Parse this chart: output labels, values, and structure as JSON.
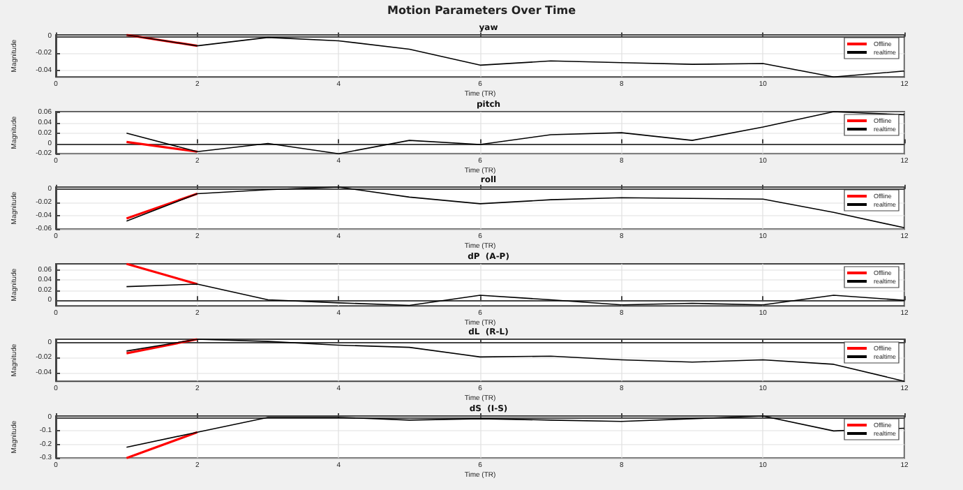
{
  "chart_data": [
    {
      "type": "line",
      "title": "yaw",
      "annotations": [
        "Motion Parameters Over Time"
      ],
      "xlabel": "Time (TR)",
      "ylabel": "Magnitude",
      "x": [
        1,
        2,
        3,
        4,
        5,
        6,
        7,
        8,
        9,
        10,
        11,
        12
      ],
      "xlim": [
        0,
        12
      ],
      "xticks": [
        0,
        2,
        4,
        6,
        8,
        10,
        12
      ],
      "ylim": [
        -0.048,
        0.002
      ],
      "yticks": [
        -0.04,
        -0.02,
        0
      ],
      "grid": true,
      "legend": "top right",
      "series": [
        {
          "name": "Offline",
          "color": "#ff0000",
          "values": [
            0.002,
            -0.011,
            null,
            null,
            null,
            null,
            null,
            null,
            null,
            null,
            null,
            null
          ]
        },
        {
          "name": "realtime",
          "color": "#000000",
          "values": [
            0.002,
            -0.011,
            -0.001,
            -0.005,
            -0.015,
            -0.034,
            -0.029,
            -0.031,
            -0.033,
            -0.032,
            -0.048,
            -0.041
          ]
        }
      ]
    },
    {
      "type": "line",
      "title": "pitch",
      "xlabel": "Time (TR)",
      "ylabel": "Magnitude",
      "x": [
        1,
        2,
        3,
        4,
        5,
        6,
        7,
        8,
        9,
        10,
        11,
        12
      ],
      "xlim": [
        0,
        12
      ],
      "xticks": [
        0,
        2,
        4,
        6,
        8,
        10,
        12
      ],
      "ylim": [
        -0.02,
        0.062
      ],
      "yticks": [
        -0.02,
        0,
        0.02,
        0.04,
        0.06
      ],
      "grid": true,
      "legend": "top right",
      "series": [
        {
          "name": "Offline",
          "color": "#ff0000",
          "values": [
            0.003,
            -0.016,
            null,
            null,
            null,
            null,
            null,
            null,
            null,
            null,
            null,
            null
          ]
        },
        {
          "name": "realtime",
          "color": "#000000",
          "values": [
            0.02,
            -0.016,
            0,
            -0.02,
            0.006,
            -0.002,
            0.017,
            0.021,
            0.006,
            0.032,
            0.062,
            0.056
          ]
        }
      ]
    },
    {
      "type": "line",
      "title": "roll",
      "xlabel": "Time (TR)",
      "ylabel": "Magnitude",
      "x": [
        1,
        2,
        3,
        4,
        5,
        6,
        7,
        8,
        9,
        10,
        11,
        12
      ],
      "xlim": [
        0,
        12
      ],
      "xticks": [
        0,
        2,
        4,
        6,
        8,
        10,
        12
      ],
      "ylim": [
        -0.06,
        0.003
      ],
      "yticks": [
        -0.06,
        -0.04,
        -0.02,
        0
      ],
      "grid": true,
      "legend": "top right",
      "series": [
        {
          "name": "Offline",
          "color": "#ff0000",
          "values": [
            -0.044,
            -0.007,
            null,
            null,
            null,
            null,
            null,
            null,
            null,
            null,
            null,
            null
          ]
        },
        {
          "name": "realtime",
          "color": "#000000",
          "values": [
            -0.048,
            -0.007,
            -0.001,
            0.003,
            -0.012,
            -0.022,
            -0.016,
            -0.013,
            -0.014,
            -0.015,
            -0.035,
            -0.058
          ]
        }
      ]
    },
    {
      "type": "line",
      "title": "dP  (A-P)",
      "xlabel": "Time (TR)",
      "ylabel": "Magnitude",
      "x": [
        1,
        2,
        3,
        4,
        5,
        6,
        7,
        8,
        9,
        10,
        11,
        12
      ],
      "xlim": [
        0,
        12
      ],
      "xticks": [
        0,
        2,
        4,
        6,
        8,
        10,
        12
      ],
      "ylim": [
        -0.011,
        0.072
      ],
      "yticks": [
        0,
        0.02,
        0.04,
        0.06
      ],
      "grid": true,
      "legend": "top right",
      "series": [
        {
          "name": "Offline",
          "color": "#ff0000",
          "values": [
            0.072,
            0.032,
            null,
            null,
            null,
            null,
            null,
            null,
            null,
            null,
            null,
            null
          ]
        },
        {
          "name": "realtime",
          "color": "#000000",
          "values": [
            0.027,
            0.032,
            0.001,
            -0.005,
            -0.01,
            0.01,
            0.001,
            -0.009,
            -0.006,
            -0.009,
            0.01,
            0
          ]
        }
      ]
    },
    {
      "type": "line",
      "title": "dL  (R-L)",
      "xlabel": "Time (TR)",
      "ylabel": "Magnitude",
      "x": [
        1,
        2,
        3,
        4,
        5,
        6,
        7,
        8,
        9,
        10,
        11,
        12
      ],
      "xlim": [
        0,
        12
      ],
      "xticks": [
        0,
        2,
        4,
        6,
        8,
        10,
        12
      ],
      "ylim": [
        -0.052,
        0.005
      ],
      "yticks": [
        -0.04,
        -0.02,
        0
      ],
      "grid": true,
      "legend": "top right",
      "series": [
        {
          "name": "Offline",
          "color": "#ff0000",
          "values": [
            -0.014,
            0.005,
            null,
            null,
            null,
            null,
            null,
            null,
            null,
            null,
            null,
            null
          ]
        },
        {
          "name": "realtime",
          "color": "#000000",
          "values": [
            -0.011,
            0.005,
            0.002,
            -0.003,
            -0.006,
            -0.019,
            -0.018,
            -0.023,
            -0.026,
            -0.023,
            -0.029,
            -0.052
          ]
        }
      ]
    },
    {
      "type": "line",
      "title": "dS  (I-S)",
      "xlabel": "Time (TR)",
      "ylabel": "Magnitude",
      "x": [
        1,
        2,
        3,
        4,
        5,
        6,
        7,
        8,
        9,
        10,
        11,
        12
      ],
      "xlim": [
        0,
        12
      ],
      "xticks": [
        0,
        2,
        4,
        6,
        8,
        10,
        12
      ],
      "ylim": [
        -0.3,
        0.01
      ],
      "yticks": [
        -0.3,
        -0.2,
        -0.1,
        0
      ],
      "grid": true,
      "legend": "top right",
      "series": [
        {
          "name": "Offline",
          "color": "#ff0000",
          "values": [
            -0.3,
            -0.11,
            null,
            null,
            null,
            null,
            null,
            null,
            null,
            null,
            null,
            null
          ]
        },
        {
          "name": "realtime",
          "color": "#000000",
          "values": [
            -0.22,
            -0.11,
            0,
            0,
            -0.02,
            -0.01,
            -0.02,
            -0.03,
            -0.01,
            0.01,
            -0.1,
            -0.08
          ]
        }
      ]
    }
  ]
}
